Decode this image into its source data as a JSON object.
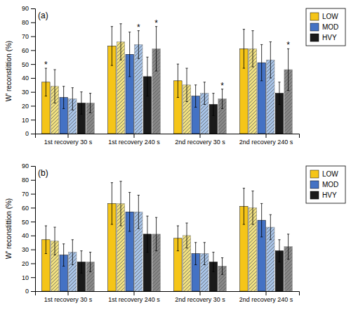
{
  "chart_data": [
    {
      "type": "bar",
      "title": "(a)",
      "y_label": "W' reconstittion (%)",
      "categories": [
        "1st recovery 30 s",
        "1st recovery 240 s",
        "2nd recovery 30 s",
        "2nd recovery 240 s"
      ],
      "series": [
        {
          "name": "LOW",
          "color": "#f5c518",
          "values": [
            37,
            63,
            38,
            61
          ],
          "errors": [
            10,
            14,
            12,
            14
          ]
        },
        {
          "color": "#f0e080",
          "values": [
            34,
            66,
            35,
            61
          ],
          "errors": [
            12,
            13,
            12,
            13
          ]
        },
        {
          "name": "MOD",
          "color": "#4472c4",
          "values": [
            26,
            57,
            27,
            51
          ],
          "errors": [
            8,
            16,
            8,
            13
          ]
        },
        {
          "color": "#a8c4e8",
          "values": [
            25,
            64,
            29,
            53
          ],
          "errors": [
            8,
            10,
            8,
            13
          ]
        },
        {
          "name": "HVY",
          "color": "#1a1a1a",
          "values": [
            22,
            41,
            21,
            29
          ],
          "errors": [
            8,
            14,
            8,
            8
          ]
        },
        {
          "color": "#888888",
          "values": [
            22,
            61,
            25,
            46
          ],
          "errors": [
            7,
            16,
            7,
            15
          ]
        }
      ],
      "annotations": [
        {
          "text": "*",
          "category": 0,
          "series": 0
        },
        {
          "text": "*",
          "category": 1,
          "series": 3
        },
        {
          "text": "*",
          "category": 1,
          "series": 5
        },
        {
          "text": "*",
          "category": 2,
          "series": 5
        },
        {
          "text": "*",
          "category": 3,
          "series": 5
        }
      ],
      "ylim": [
        0,
        90
      ],
      "yticks": [
        0,
        10,
        20,
        30,
        40,
        50,
        60,
        70,
        80,
        90
      ],
      "grid": false,
      "legend": "upper right"
    },
    {
      "type": "bar",
      "title": "(b)",
      "y_label": "W' reconstittion (%)",
      "categories": [
        "1st recovery 30 s",
        "1st recovery 240 s",
        "2nd recovery 30 s",
        "2nd recovery 240 s"
      ],
      "series": [
        {
          "name": "LOW",
          "color": "#f5c518",
          "values": [
            37,
            63,
            38,
            61
          ],
          "errors": [
            10,
            15,
            9,
            13
          ]
        },
        {
          "color": "#f0e080",
          "values": [
            36,
            63,
            40,
            60
          ],
          "errors": [
            10,
            16,
            9,
            12
          ]
        },
        {
          "name": "MOD",
          "color": "#4472c4",
          "values": [
            26,
            57,
            27,
            51
          ],
          "errors": [
            8,
            14,
            8,
            12
          ]
        },
        {
          "color": "#a8c4e8",
          "values": [
            28,
            57,
            27,
            46
          ],
          "errors": [
            9,
            12,
            8,
            9
          ]
        },
        {
          "name": "HVY",
          "color": "#1a1a1a",
          "values": [
            21,
            41,
            21,
            29
          ],
          "errors": [
            8,
            13,
            7,
            8
          ]
        },
        {
          "color": "#888888",
          "values": [
            21,
            41,
            18,
            32
          ],
          "errors": [
            7,
            12,
            6,
            9
          ]
        }
      ],
      "ylim": [
        0,
        90
      ],
      "yticks": [
        0,
        10,
        20,
        30,
        40,
        50,
        60,
        70,
        80,
        90
      ],
      "grid": false,
      "legend": "upper right"
    }
  ]
}
